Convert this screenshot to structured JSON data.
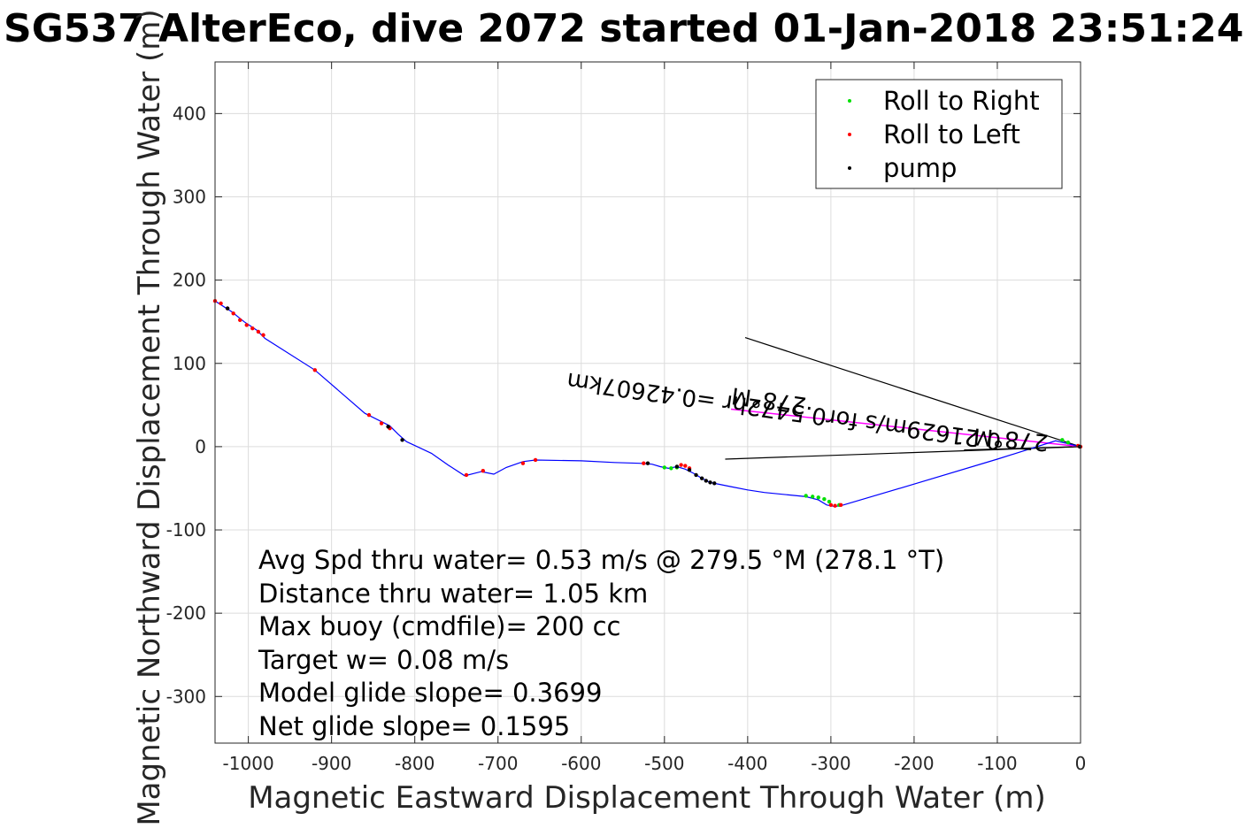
{
  "chart_data": {
    "type": "line",
    "title": "SG537 AlterEco, dive 2072 started 01-Jan-2018 23:51:24",
    "xlabel": "Magnetic Eastward Displacement Through Water (m)",
    "ylabel": "Magnetic Northward Displacement Through Water (m)",
    "xlim": [
      -1040,
      0
    ],
    "ylim": [
      -356,
      462
    ],
    "xticks": [
      -1000,
      -900,
      -800,
      -700,
      -600,
      -500,
      -400,
      -300,
      -200,
      -100,
      0
    ],
    "yticks": [
      -300,
      -200,
      -100,
      0,
      100,
      200,
      300,
      400
    ],
    "grid": true,
    "legend": {
      "placement": "top-right",
      "entries": [
        {
          "label": "Roll to Right",
          "color": "#00e000"
        },
        {
          "label": "Roll to Left",
          "color": "#ff0000"
        },
        {
          "label": "pump",
          "color": "#000000"
        }
      ]
    },
    "track": {
      "color": "#0000ff",
      "x": [
        -1040,
        -1020,
        -1005,
        -990,
        -980,
        -920,
        -860,
        -830,
        -820,
        -810,
        -780,
        -760,
        -740,
        -720,
        -705,
        -690,
        -670,
        -655,
        -600,
        -560,
        -530,
        -515,
        -505,
        -495,
        -485,
        -475,
        -465,
        -455,
        -445,
        -420,
        -400,
        -380,
        -350,
        -330,
        -315,
        -305,
        -295,
        -285,
        -200,
        -100,
        -30,
        0
      ],
      "y": [
        175,
        162,
        150,
        140,
        130,
        92,
        40,
        25,
        15,
        6,
        -8,
        -22,
        -35,
        -30,
        -33,
        -25,
        -18,
        -16,
        -17,
        -19,
        -20,
        -21,
        -24,
        -26,
        -24,
        -27,
        -32,
        -38,
        -43,
        -48,
        -52,
        -55,
        -58,
        -60,
        -64,
        -70,
        -72,
        -70,
        -45,
        -15,
        7,
        0
      ]
    },
    "roll_right": {
      "color": "#00e000",
      "x": [
        -500,
        -492,
        -485,
        -330,
        -322,
        -315,
        -308,
        -302,
        -290,
        -22,
        -15
      ],
      "y": [
        -25,
        -26,
        -25,
        -59,
        -60,
        -61,
        -63,
        -66,
        -70,
        8,
        5
      ]
    },
    "roll_left": {
      "color": "#ff0000",
      "x": [
        -1040,
        -1033,
        -1025,
        -1018,
        -1010,
        -1002,
        -995,
        -988,
        -982,
        -920,
        -855,
        -840,
        -830,
        -738,
        -718,
        -670,
        -655,
        -525,
        -480,
        -475,
        -470,
        -300,
        -295,
        -288,
        -3,
        0
      ],
      "y": [
        175,
        172,
        166,
        160,
        152,
        146,
        142,
        138,
        134,
        92,
        38,
        28,
        22,
        -34,
        -29,
        -20,
        -16,
        -20,
        -22,
        -23,
        -26,
        -70,
        -71,
        -70,
        1,
        0
      ]
    },
    "pump": {
      "color": "#000000",
      "x": [
        -1025,
        -832,
        -815,
        -520,
        -485,
        -470,
        -462,
        -455,
        -450,
        -445,
        -440,
        -1
      ],
      "y": [
        166,
        24,
        8,
        -20,
        -24,
        -28,
        -34,
        -38,
        -41,
        -43,
        -44,
        0
      ]
    },
    "current_lines": {
      "color": "#000000",
      "segments": [
        {
          "x": [
            -403,
            0
          ],
          "y": [
            131,
            0
          ]
        },
        {
          "x": [
            -427,
            0
          ],
          "y": [
            -15,
            0
          ]
        },
        {
          "x": [
            -140,
            0
          ],
          "y": [
            -4,
            0
          ]
        }
      ]
    },
    "heading_line": {
      "color": "#ff00ff",
      "x": [
        -420,
        0
      ],
      "y": [
        45,
        0
      ]
    },
    "annotations": {
      "current_1": "0.21629m/s for0.5472hr =0.42607km",
      "current_2": "278°M",
      "current_3": "278°M"
    },
    "stats": [
      "Avg Spd thru water=  0.53 m/s @ 279.5 °M (278.1 °T)",
      "Distance thru water=  1.05 km",
      "Max buoy (cmdfile)= 200 cc",
      "Target w= 0.08 m/s",
      "Model glide slope= 0.3699",
      "Net glide slope= 0.1595"
    ]
  }
}
